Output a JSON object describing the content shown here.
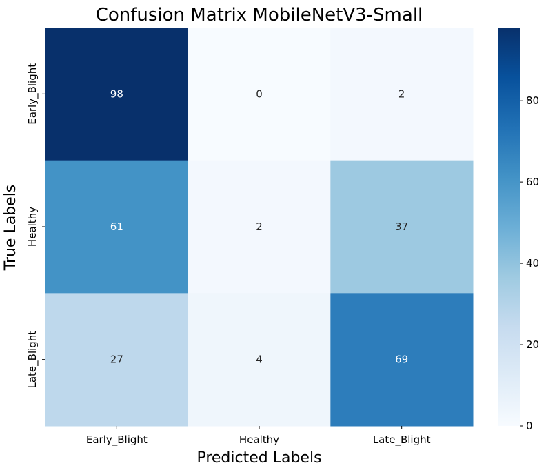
{
  "chart_data": {
    "type": "heatmap",
    "title": "Confusion Matrix MobileNetV3-Small",
    "xlabel": "Predicted Labels",
    "ylabel": "True Labels",
    "x_categories": [
      "Early_Blight",
      "Healthy",
      "Late_Blight"
    ],
    "y_categories": [
      "Early_Blight",
      "Healthy",
      "Late_Blight"
    ],
    "values": [
      [
        98,
        0,
        2
      ],
      [
        61,
        2,
        37
      ],
      [
        27,
        4,
        69
      ]
    ],
    "colorbar": {
      "range": [
        0,
        98
      ],
      "ticks": [
        0,
        20,
        40,
        60,
        80
      ]
    },
    "colormap": "Blues"
  }
}
